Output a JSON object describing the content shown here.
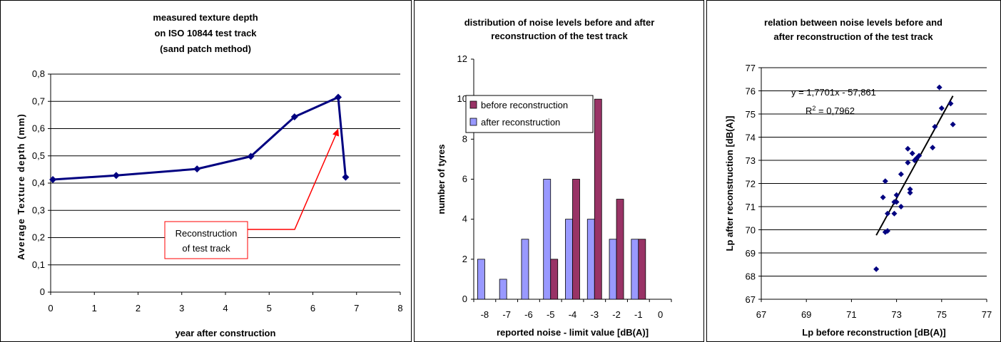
{
  "chart_data": [
    {
      "type": "line",
      "title_lines": [
        "measured texture depth",
        "on ISO 10844 test track",
        "(sand patch method)"
      ],
      "xlabel": "year after construction",
      "ylabel": "Average Texture depth (mm)",
      "xlim": [
        0,
        8
      ],
      "ylim": [
        0,
        0.8
      ],
      "x_ticks": [
        "0",
        "1",
        "2",
        "3",
        "4",
        "5",
        "6",
        "7",
        "8"
      ],
      "y_ticks": [
        "0",
        "0,1",
        "0,2",
        "0,3",
        "0,4",
        "0,5",
        "0,6",
        "0,7",
        "0,8"
      ],
      "grid": "horizontal",
      "series": [
        {
          "x": [
            0.05,
            1.5,
            3.35,
            4.58,
            5.58,
            6.58,
            6.75
          ],
          "y": [
            0.413,
            0.428,
            0.452,
            0.498,
            0.643,
            0.715,
            0.422
          ]
        }
      ],
      "annotation": {
        "lines": [
          "Reconstruction",
          "of test track"
        ],
        "points_to": [
          6.58,
          0.6
        ]
      },
      "colors": {
        "line": "#000080",
        "arrow": "#ff0000"
      }
    },
    {
      "type": "bar",
      "title_lines": [
        "distribution of noise levels before and after",
        "reconstruction of the test track"
      ],
      "xlabel": "reported noise - limit value [dB(A)]",
      "ylabel": "number of tyres",
      "categories": [
        "-8",
        "-7",
        "-6",
        "-5",
        "-4",
        "-3",
        "-2",
        "-1",
        "0"
      ],
      "ylim": [
        0,
        12
      ],
      "y_ticks": [
        "0",
        "2",
        "4",
        "6",
        "8",
        "10",
        "12"
      ],
      "legend_position": "top-left",
      "series": [
        {
          "name": "before reconstruction",
          "values": [
            0,
            0,
            0,
            2,
            6,
            10,
            5,
            3,
            0
          ],
          "color": "#993366"
        },
        {
          "name": "after reconstruction",
          "values": [
            2,
            1,
            3,
            6,
            4,
            4,
            3,
            3,
            0
          ],
          "color": "#9999ff"
        }
      ]
    },
    {
      "type": "scatter",
      "title_lines": [
        "relation between noise levels before and",
        "after reconstruction of the test track"
      ],
      "xlabel": "Lp before reconstruction [dB(A)]",
      "ylabel": "Lp after reconstruction [dB(A)]",
      "xlim": [
        67,
        77
      ],
      "ylim": [
        67,
        77
      ],
      "x_ticks": [
        "67",
        "69",
        "71",
        "73",
        "75",
        "77"
      ],
      "y_ticks": [
        "67",
        "68",
        "69",
        "70",
        "71",
        "72",
        "73",
        "74",
        "75",
        "76",
        "77"
      ],
      "grid": "horizontal",
      "points": [
        [
          72.1,
          68.3
        ],
        [
          72.5,
          69.9
        ],
        [
          72.6,
          69.95
        ],
        [
          72.6,
          70.7
        ],
        [
          72.9,
          70.7
        ],
        [
          72.4,
          71.4
        ],
        [
          72.9,
          71.2
        ],
        [
          73.0,
          71.2
        ],
        [
          73.2,
          71.0
        ],
        [
          72.5,
          72.1
        ],
        [
          73.2,
          72.4
        ],
        [
          73.0,
          71.5
        ],
        [
          73.6,
          71.6
        ],
        [
          73.6,
          71.75
        ],
        [
          73.5,
          72.9
        ],
        [
          73.5,
          73.5
        ],
        [
          73.7,
          73.3
        ],
        [
          73.8,
          73.0
        ],
        [
          74.0,
          73.2
        ],
        [
          73.9,
          73.1
        ],
        [
          74.6,
          73.55
        ],
        [
          74.7,
          74.45
        ],
        [
          74.9,
          76.15
        ],
        [
          75.0,
          75.25
        ],
        [
          75.4,
          75.45
        ],
        [
          75.5,
          74.55
        ]
      ],
      "trendline": {
        "slope": 1.7701,
        "intercept": -57.861,
        "x_range": [
          72.1,
          75.5
        ]
      },
      "equation": "y = 1,7701x - 57,861",
      "r2_prefix": "R",
      "r2_sup": "2",
      "r2_suffix": " = 0,7962",
      "colors": {
        "points": "#000080",
        "trend": "#000000"
      }
    }
  ]
}
